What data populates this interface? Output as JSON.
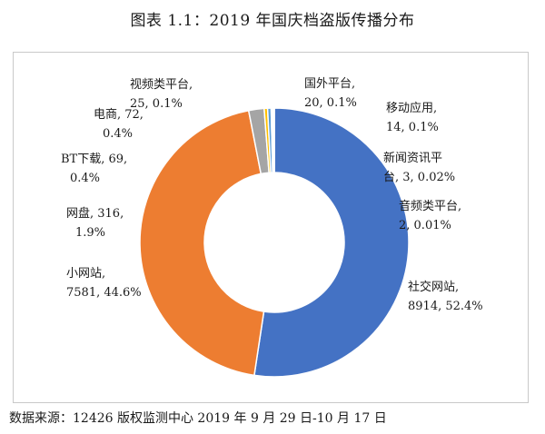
{
  "title": "图表 1.1：2019 年国庆档盗版传播分布",
  "source": "数据来源：12426 版权监测中心 2019 年 9 月 29 日-10 月 17 日",
  "chart_data": {
    "type": "pie",
    "variant": "donut",
    "title": "图表 1.1：2019 年国庆档盗版传播分布",
    "slices": [
      {
        "name": "社交网站",
        "value": 8914,
        "percent": "52.4%",
        "color": "#4472C4",
        "label_lines": [
          "社交网站,",
          "8914, 52.4%"
        ]
      },
      {
        "name": "小网站",
        "value": 7581,
        "percent": "44.6%",
        "color": "#ED7D31",
        "label_lines": [
          "小网站,",
          "7581, 44.6%"
        ]
      },
      {
        "name": "网盘",
        "value": 316,
        "percent": "1.9%",
        "color": "#A5A5A5",
        "label_lines": [
          "网盘, 316,",
          "1.9%"
        ]
      },
      {
        "name": "BT下载",
        "value": 69,
        "percent": "0.4%",
        "color": "#FFC000",
        "label_lines": [
          "BT下载, 69,",
          "0.4%"
        ]
      },
      {
        "name": "电商",
        "value": 72,
        "percent": "0.4%",
        "color": "#5B9BD5",
        "label_lines": [
          "电商, 72,",
          "0.4%"
        ]
      },
      {
        "name": "视频类平台",
        "value": 25,
        "percent": "0.1%",
        "color": "#70AD47",
        "label_lines": [
          "视频类平台,",
          "25, 0.1%"
        ]
      },
      {
        "name": "国外平台",
        "value": 20,
        "percent": "0.1%",
        "color": "#264478",
        "label_lines": [
          "国外平台,",
          "20, 0.1%"
        ]
      },
      {
        "name": "移动应用",
        "value": 14,
        "percent": "0.1%",
        "color": "#9E480E",
        "label_lines": [
          "移动应用,",
          "14, 0.1%"
        ]
      },
      {
        "name": "新闻资讯平台",
        "value": 3,
        "percent": "0.02%",
        "color": "#636363",
        "label_lines": [
          "新闻资讯平",
          "台, 3, 0.02%"
        ]
      },
      {
        "name": "音频类平台",
        "value": 2,
        "percent": "0.01%",
        "color": "#997300",
        "label_lines": [
          "音频类平台,",
          "2, 0.01%"
        ]
      }
    ],
    "legend": "none"
  }
}
